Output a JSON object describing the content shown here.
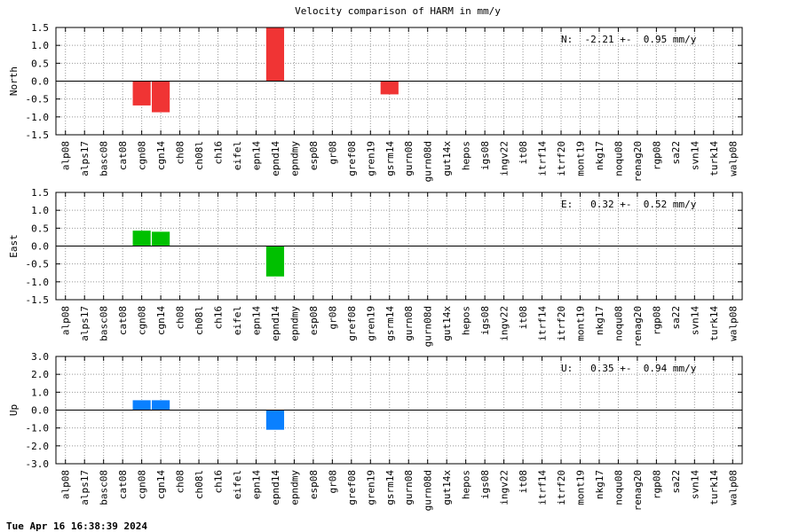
{
  "title": "Velocity comparison of HARM in mm/y",
  "footer": "Tue Apr 16 16:38:39 2024",
  "chart_data": [
    {
      "type": "bar",
      "ylabel": "North",
      "annotation": "N:  -2.21 +-  0.95 mm/y",
      "color": "#f03434",
      "categories": [
        "alp08",
        "alps17",
        "basc08",
        "cat08",
        "cgn08",
        "cgn14",
        "ch08",
        "ch08l",
        "ch16",
        "eifel",
        "epn14",
        "epnd14",
        "epndmy",
        "esp08",
        "gr08",
        "gref08",
        "gren19",
        "gsrm14",
        "gurn08",
        "gurn08d",
        "gut14x",
        "hepos",
        "igs08",
        "ingv22",
        "it08",
        "itrf14",
        "itrf20",
        "mont19",
        "nkg17",
        "noqu08",
        "renag20",
        "rgp08",
        "sa22",
        "svn14",
        "turk14",
        "walp08"
      ],
      "values": [
        0,
        0,
        0,
        0,
        -0.68,
        -0.87,
        0,
        0,
        0,
        0,
        0,
        1.5,
        0,
        0,
        0,
        0,
        0,
        -0.37,
        0,
        0,
        0,
        0,
        0,
        0,
        0,
        0,
        0,
        0,
        0,
        0,
        0,
        0,
        0,
        0,
        0,
        0
      ],
      "ylim": [
        -1.5,
        1.5
      ],
      "yticks": [
        -1.5,
        {
          "value": -1,
          "label": "-1.0"
        },
        -0.5,
        {
          "value": 0,
          "label": "0.0"
        },
        0.5,
        {
          "value": 1,
          "label": "1.0"
        },
        1.5
      ],
      "grid": true
    },
    {
      "type": "bar",
      "ylabel": "East",
      "annotation": "E:   0.32 +-  0.52 mm/y",
      "color": "#00c000",
      "categories": [
        "alp08",
        "alps17",
        "basc08",
        "cat08",
        "cgn08",
        "cgn14",
        "ch08",
        "ch08l",
        "ch16",
        "eifel",
        "epn14",
        "epnd14",
        "epndmy",
        "esp08",
        "gr08",
        "gref08",
        "gren19",
        "gsrm14",
        "gurn08",
        "gurn08d",
        "gut14x",
        "hepos",
        "igs08",
        "ingv22",
        "it08",
        "itrf14",
        "itrf20",
        "mont19",
        "nkg17",
        "noqu08",
        "renag20",
        "rgp08",
        "sa22",
        "svn14",
        "turk14",
        "walp08"
      ],
      "values": [
        0,
        0,
        0,
        0,
        0.43,
        0.4,
        0,
        0,
        0,
        0,
        0,
        -0.85,
        0,
        0,
        0,
        0,
        0,
        0,
        0,
        0,
        0,
        0,
        0,
        0,
        0,
        0,
        0,
        0,
        0,
        0,
        0,
        0,
        0,
        0,
        0,
        0
      ],
      "ylim": [
        -1.5,
        1.5
      ],
      "yticks": [
        -1.5,
        {
          "value": -1,
          "label": "-1.0"
        },
        -0.5,
        {
          "value": 0,
          "label": "0.0"
        },
        0.5,
        {
          "value": 1,
          "label": "1.0"
        },
        1.5
      ],
      "grid": true
    },
    {
      "type": "bar",
      "ylabel": "Up",
      "annotation": "U:   0.35 +-  0.94 mm/y",
      "color": "#0a80ff",
      "categories": [
        "alp08",
        "alps17",
        "basc08",
        "cat08",
        "cgn08",
        "cgn14",
        "ch08",
        "ch08l",
        "ch16",
        "eifel",
        "epn14",
        "epnd14",
        "epndmy",
        "esp08",
        "gr08",
        "gref08",
        "gren19",
        "gsrm14",
        "gurn08",
        "gurn08d",
        "gut14x",
        "hepos",
        "igs08",
        "ingv22",
        "it08",
        "itrf14",
        "itrf20",
        "mont19",
        "nkg17",
        "noqu08",
        "renag20",
        "rgp08",
        "sa22",
        "svn14",
        "turk14",
        "walp08"
      ],
      "values": [
        0,
        0,
        0,
        0,
        0.55,
        0.55,
        0,
        0,
        0,
        0,
        0,
        -1.1,
        0,
        0,
        0,
        0,
        0,
        0,
        0,
        0,
        0,
        0,
        0,
        0,
        0,
        0,
        0,
        0,
        0,
        0,
        0,
        0,
        0,
        0,
        0,
        0
      ],
      "ylim": [
        -3,
        3
      ],
      "yticks": [
        {
          "value": -3,
          "label": "-3.0"
        },
        {
          "value": -2,
          "label": "-2.0"
        },
        {
          "value": -1,
          "label": "-1.0"
        },
        {
          "value": 0,
          "label": "0.0"
        },
        {
          "value": 1,
          "label": "1.0"
        },
        {
          "value": 2,
          "label": "2.0"
        },
        {
          "value": 3,
          "label": "3.0"
        }
      ],
      "grid": true
    }
  ]
}
